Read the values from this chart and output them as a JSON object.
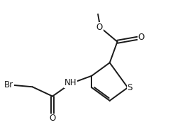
{
  "background_color": "#ffffff",
  "line_color": "#1a1a1a",
  "line_width": 1.4,
  "font_size": 8.5,
  "xlim": [
    -1.6,
    3.8
  ],
  "ylim": [
    -2.0,
    2.0
  ],
  "figsize": [
    2.44,
    1.76
  ],
  "dpi": 100
}
